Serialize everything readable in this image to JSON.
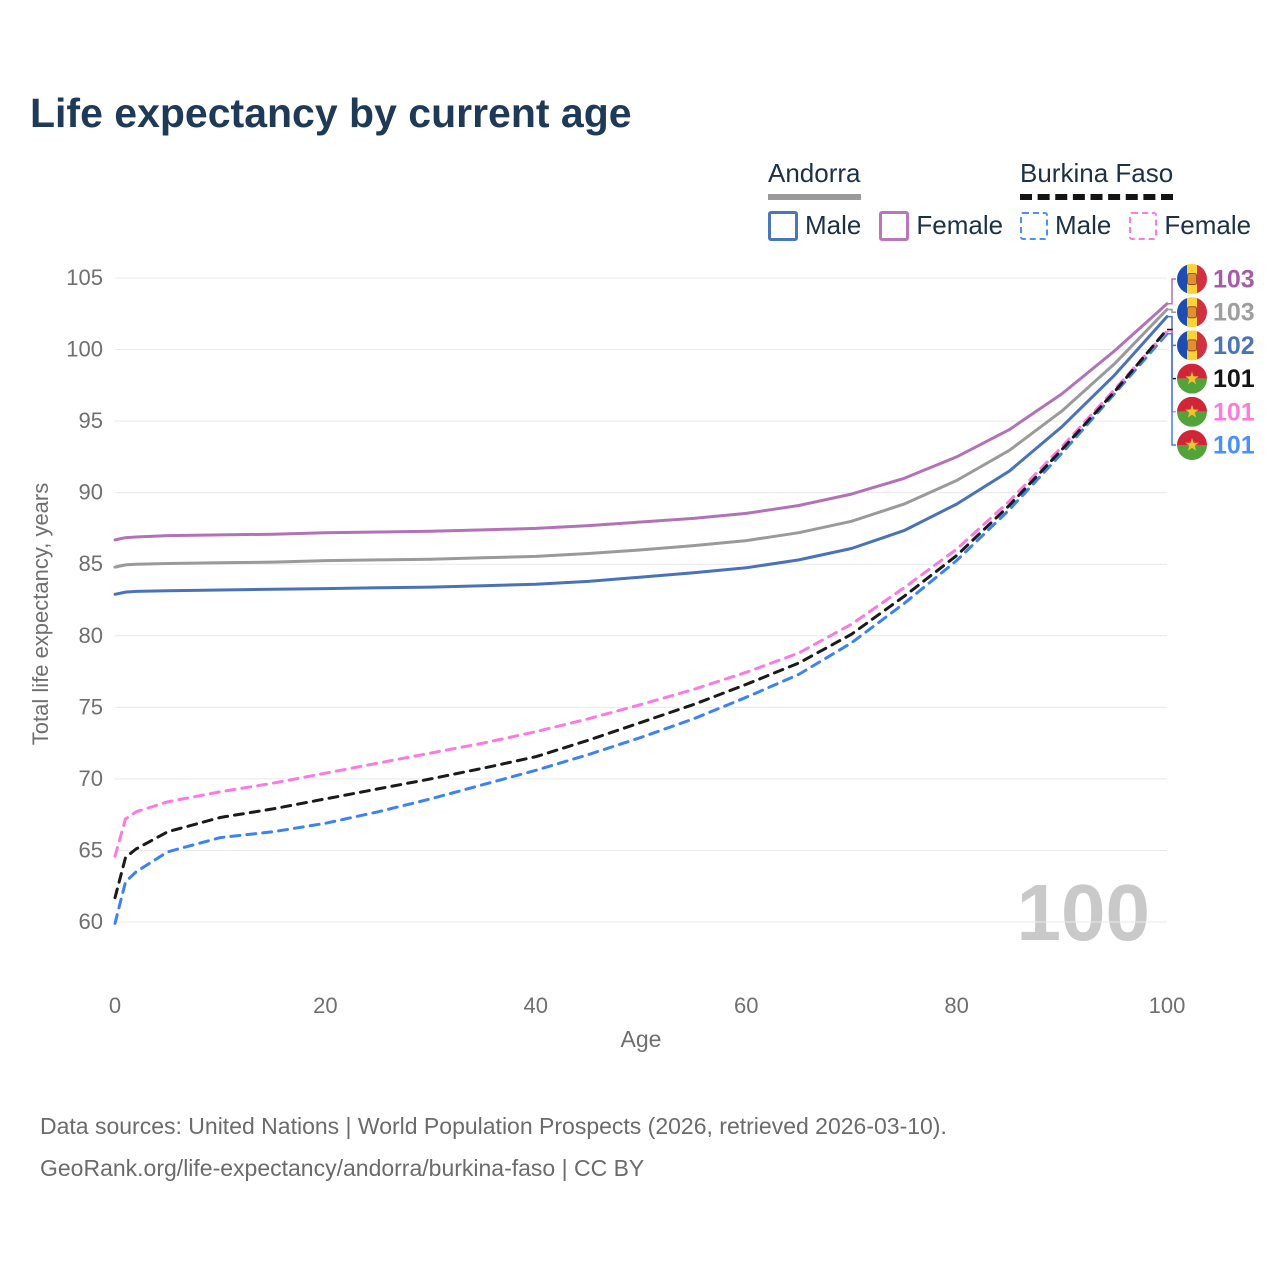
{
  "title": "Life expectancy by current age",
  "watermark": "100",
  "legend": {
    "groups": [
      {
        "name": "Andorra",
        "line_style": "solid",
        "underline_color": "#9a9a9a",
        "items": [
          {
            "label": "Male",
            "color": "#4a77bc",
            "dashed": false
          },
          {
            "label": "Female",
            "color": "#b678b6",
            "dashed": false
          }
        ]
      },
      {
        "name": "Burkina Faso",
        "line_style": "dashed",
        "underline_color": "#141414",
        "items": [
          {
            "label": "Male",
            "color": "#4a90f5",
            "dashed": true
          },
          {
            "label": "Female",
            "color": "#fb7ae0",
            "dashed": true
          }
        ]
      }
    ]
  },
  "chart_data": {
    "type": "line",
    "title": "Life expectancy by current age",
    "xlabel": "Age",
    "ylabel": "Total life expectancy, years",
    "xlim": [
      0,
      100
    ],
    "ylim": [
      59,
      105.5
    ],
    "xticks": [
      0,
      20,
      40,
      60,
      80,
      100
    ],
    "yticks": [
      60,
      65,
      70,
      75,
      80,
      85,
      90,
      95,
      100,
      105
    ],
    "grid": "horizontal",
    "legend_position": "top-right",
    "x": [
      0,
      1,
      2,
      5,
      10,
      15,
      20,
      25,
      30,
      35,
      40,
      45,
      50,
      55,
      60,
      65,
      70,
      75,
      80,
      85,
      90,
      95,
      100
    ],
    "series": [
      {
        "id": "andorra-female",
        "name": "Andorra Female",
        "color": "#b272b8",
        "label_color": "#a55ca8",
        "dashed": false,
        "flag": "andorra",
        "end_label": "103",
        "values": [
          86.7,
          86.85,
          86.9,
          87.0,
          87.05,
          87.1,
          87.2,
          87.25,
          87.3,
          87.4,
          87.5,
          87.7,
          87.95,
          88.2,
          88.55,
          89.1,
          89.9,
          91.0,
          92.5,
          94.4,
          96.9,
          99.9,
          103.2
        ]
      },
      {
        "id": "andorra-both",
        "name": "Andorra (both sexes)",
        "color": "#9a9a9a",
        "label_color": "#9e9e9e",
        "dashed": false,
        "flag": "andorra",
        "end_label": "103",
        "values": [
          84.8,
          84.95,
          85.0,
          85.05,
          85.1,
          85.15,
          85.25,
          85.3,
          85.35,
          85.45,
          85.55,
          85.75,
          86.0,
          86.3,
          86.65,
          87.2,
          88.0,
          89.2,
          90.85,
          92.95,
          95.7,
          99.0,
          102.8
        ]
      },
      {
        "id": "andorra-male",
        "name": "Andorra Male",
        "color": "#4a72b8",
        "label_color": "#4a74b8",
        "dashed": false,
        "flag": "andorra",
        "end_label": "102",
        "values": [
          82.9,
          83.05,
          83.1,
          83.15,
          83.2,
          83.25,
          83.3,
          83.35,
          83.4,
          83.5,
          83.6,
          83.8,
          84.1,
          84.4,
          84.75,
          85.3,
          86.1,
          87.35,
          89.2,
          91.5,
          94.6,
          98.2,
          102.3
        ]
      },
      {
        "id": "burkina-faso-both",
        "name": "Burkina Faso (both sexes)",
        "color": "#1a1a1a",
        "label_color": "#141414",
        "dashed": true,
        "flag": "burkina-faso",
        "end_label": "101",
        "values": [
          61.7,
          64.5,
          65.1,
          66.3,
          67.3,
          67.9,
          68.6,
          69.3,
          70.0,
          70.75,
          71.55,
          72.7,
          73.95,
          75.2,
          76.6,
          78.1,
          80.1,
          82.75,
          85.6,
          89.1,
          93.0,
          97.05,
          101.4
        ]
      },
      {
        "id": "burkina-faso-female",
        "name": "Burkina Faso Female",
        "color": "#fb7ae0",
        "label_color": "#ff7ad9",
        "dashed": true,
        "flag": "burkina-faso",
        "end_label": "101",
        "values": [
          64.6,
          67.2,
          67.7,
          68.4,
          69.1,
          69.7,
          70.4,
          71.1,
          71.8,
          72.5,
          73.3,
          74.2,
          75.2,
          76.25,
          77.45,
          78.8,
          80.8,
          83.35,
          86.05,
          89.4,
          93.2,
          97.2,
          101.3
        ]
      },
      {
        "id": "burkina-faso-male",
        "name": "Burkina Faso Male",
        "color": "#3d82f0",
        "label_color": "#4a90f5",
        "dashed": true,
        "flag": "burkina-faso",
        "end_label": "101",
        "values": [
          59.9,
          62.8,
          63.5,
          64.9,
          65.9,
          66.3,
          66.9,
          67.7,
          68.6,
          69.6,
          70.6,
          71.7,
          72.9,
          74.2,
          75.7,
          77.3,
          79.5,
          82.25,
          85.25,
          88.8,
          92.75,
          96.9,
          101.1
        ]
      }
    ]
  },
  "footer": {
    "line1": "Data sources: United Nations | World Population Prospects (2026, retrieved 2026-03-10).",
    "line2": "GeoRank.org/life-expectancy/andorra/burkina-faso | CC BY"
  }
}
